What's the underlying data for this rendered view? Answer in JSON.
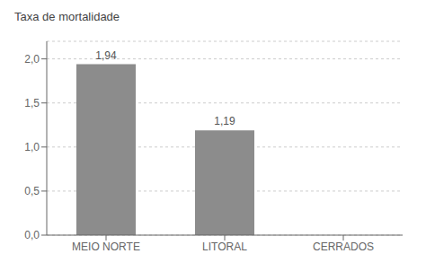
{
  "chart_data": {
    "type": "bar",
    "title": "Taxa de mortalidade",
    "categories": [
      "MEIO NORTE",
      "LITORAL",
      "CERRADOS"
    ],
    "values": [
      1.94,
      1.19,
      0.0
    ],
    "color": "#8c8c8c",
    "ylim": [
      0,
      2.2
    ],
    "yticks": [
      {
        "value": 0.0,
        "label": "0,0"
      },
      {
        "value": 0.5,
        "label": "0,5"
      },
      {
        "value": 1.0,
        "label": "1,0"
      },
      {
        "value": 1.5,
        "label": "1,5"
      },
      {
        "value": 2.0,
        "label": "2,0"
      }
    ],
    "grid": true,
    "annotations": [
      {
        "text": "1,94",
        "category": "MEIO NORTE",
        "y": 1.94
      },
      {
        "text": "1,19",
        "category": "LITORAL",
        "y": 1.19
      }
    ]
  }
}
